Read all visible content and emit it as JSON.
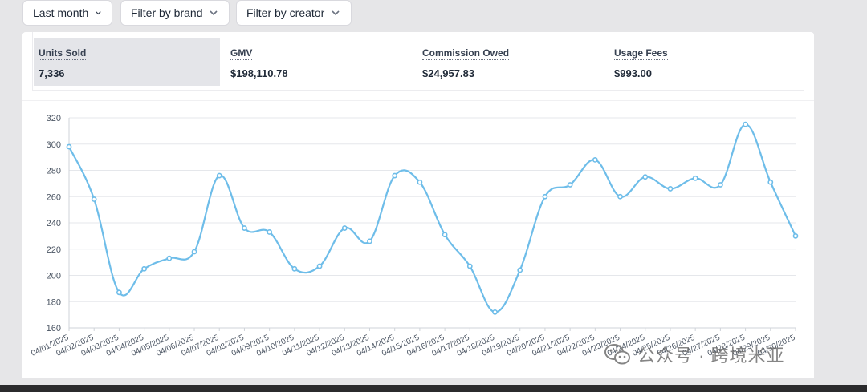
{
  "filters": {
    "date": "Last month",
    "brand": "Filter by brand",
    "creator": "Filter by creator"
  },
  "metrics": [
    {
      "label": "Units Sold",
      "value": "7,336"
    },
    {
      "label": "GMV",
      "value": "$198,110.78"
    },
    {
      "label": "Commission Owed",
      "value": "$24,957.83"
    },
    {
      "label": "Usage Fees",
      "value": "$993.00"
    }
  ],
  "colors": {
    "line": "#6ebde9",
    "active_metric_bg": "#e4e5e9",
    "grid": "#e5e7eb"
  },
  "chart_data": {
    "type": "line",
    "title": "",
    "xlabel": "",
    "ylabel": "",
    "ylim": [
      160,
      320
    ],
    "yticks": [
      160,
      180,
      200,
      220,
      240,
      260,
      280,
      300,
      320
    ],
    "categories": [
      "04/01/2025",
      "04/02/2025",
      "04/03/2025",
      "04/04/2025",
      "04/05/2025",
      "04/06/2025",
      "04/07/2025",
      "04/08/2025",
      "04/09/2025",
      "04/10/2025",
      "04/11/2025",
      "04/12/2025",
      "04/13/2025",
      "04/14/2025",
      "04/15/2025",
      "04/16/2025",
      "04/17/2025",
      "04/18/2025",
      "04/19/2025",
      "04/20/2025",
      "04/21/2025",
      "04/22/2025",
      "04/23/2025",
      "04/24/2025",
      "04/25/2025",
      "04/26/2025",
      "04/27/2025",
      "04/28/2025",
      "04/29/2025",
      "04/30/2025"
    ],
    "series": [
      {
        "name": "Units Sold",
        "values": [
          298,
          258,
          187,
          205,
          213,
          218,
          276,
          236,
          233,
          205,
          207,
          236,
          226,
          276,
          271,
          231,
          207,
          172,
          204,
          260,
          269,
          288,
          260,
          275,
          266,
          274,
          269,
          315,
          271,
          230
        ]
      }
    ]
  },
  "watermark": {
    "text": "公众号 · 跨境米亚",
    "icon": "wechat-icon"
  }
}
